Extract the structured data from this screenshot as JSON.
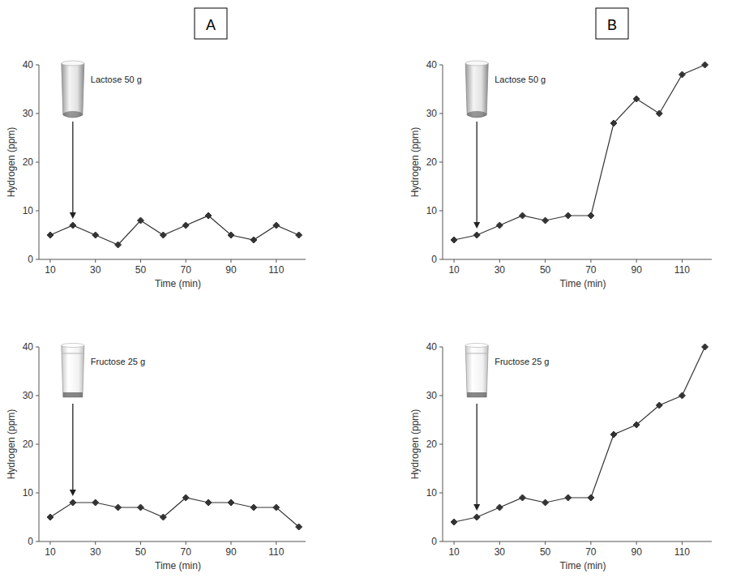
{
  "panel_labels": [
    "A",
    "B"
  ],
  "chart_data": [
    {
      "type": "line",
      "annotations": [
        {
          "text": "Lactose 50 g",
          "x": 20
        }
      ],
      "x_label": "Time (min)",
      "y_label": "Hydrogen (ppm)",
      "x": [
        10,
        20,
        30,
        40,
        50,
        60,
        70,
        80,
        90,
        100,
        110,
        120
      ],
      "values": [
        5,
        7,
        5,
        3,
        8,
        5,
        7,
        9,
        5,
        4,
        7,
        5
      ],
      "xlim": [
        5,
        123
      ],
      "xticks": [
        10,
        30,
        50,
        70,
        90,
        110
      ],
      "ylim": [
        0,
        40
      ],
      "yticks": [
        0,
        10,
        20,
        30,
        40
      ],
      "color": "#333333",
      "marker": "diamond",
      "grid": false
    },
    {
      "type": "line",
      "annotations": [
        {
          "text": "Fructose 25 g",
          "x": 20
        }
      ],
      "x_label": "Time (min)",
      "y_label": "Hydrogen (ppm)",
      "x": [
        10,
        20,
        30,
        40,
        50,
        60,
        70,
        80,
        90,
        100,
        110,
        120
      ],
      "values": [
        5,
        8,
        8,
        7,
        7,
        5,
        9,
        8,
        8,
        7,
        7,
        3
      ],
      "xlim": [
        5,
        123
      ],
      "xticks": [
        10,
        30,
        50,
        70,
        90,
        110
      ],
      "ylim": [
        0,
        40
      ],
      "yticks": [
        0,
        10,
        20,
        30,
        40
      ],
      "color": "#333333",
      "marker": "diamond",
      "grid": false
    },
    {
      "type": "line",
      "annotations": [
        {
          "text": "Lactose 50 g",
          "x": 20
        }
      ],
      "x_label": "Time (min)",
      "y_label": "Hydrogen (ppm)",
      "x": [
        10,
        20,
        30,
        40,
        50,
        60,
        70,
        80,
        90,
        100,
        110,
        120
      ],
      "values": [
        4,
        5,
        7,
        9,
        8,
        9,
        9,
        28,
        33,
        30,
        38,
        40
      ],
      "xlim": [
        5,
        123
      ],
      "xticks": [
        10,
        30,
        50,
        70,
        90,
        110
      ],
      "ylim": [
        0,
        40
      ],
      "yticks": [
        0,
        10,
        20,
        30,
        40
      ],
      "color": "#333333",
      "marker": "diamond",
      "grid": false
    },
    {
      "type": "line",
      "annotations": [
        {
          "text": "Fructose 25 g",
          "x": 20
        }
      ],
      "x_label": "Time (min)",
      "y_label": "Hydrogen (ppm)",
      "x": [
        10,
        20,
        30,
        40,
        50,
        60,
        70,
        80,
        90,
        100,
        110,
        120
      ],
      "values": [
        4,
        5,
        7,
        9,
        8,
        9,
        9,
        22,
        24,
        28,
        30,
        40
      ],
      "xlim": [
        5,
        123
      ],
      "xticks": [
        10,
        30,
        50,
        70,
        90,
        110
      ],
      "ylim": [
        0,
        40
      ],
      "yticks": [
        0,
        10,
        20,
        30,
        40
      ],
      "color": "#333333",
      "marker": "diamond",
      "grid": false
    }
  ]
}
